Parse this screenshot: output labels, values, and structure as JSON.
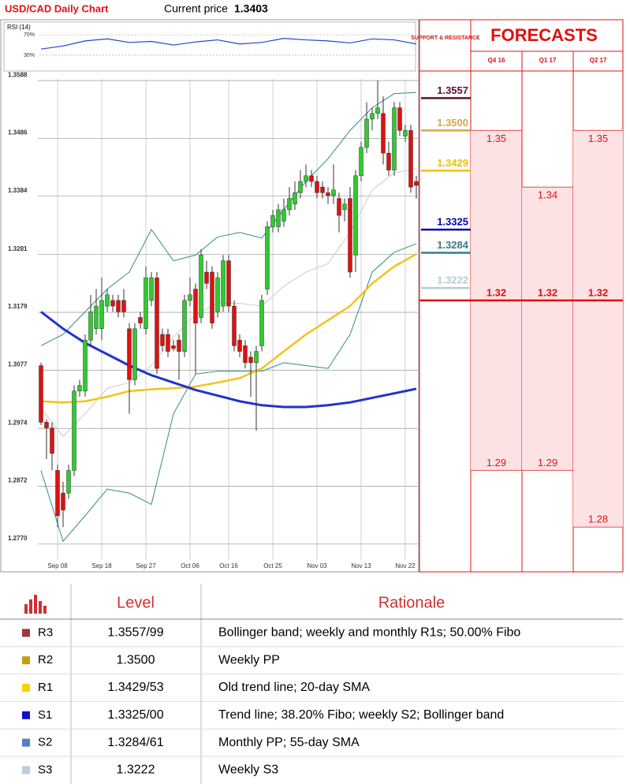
{
  "chart_data": {
    "type": "candlestick",
    "title": "USD/CAD Daily Chart",
    "current_price_label": "Current price",
    "current_price": 1.3403,
    "categories": [
      null,
      null,
      null,
      "Sep 08",
      null,
      null,
      null,
      null,
      null,
      null,
      null,
      "Sep 18",
      null,
      null,
      null,
      null,
      null,
      null,
      null,
      "Sep 27",
      null,
      null,
      null,
      null,
      null,
      null,
      null,
      "Oct 06",
      null,
      null,
      null,
      null,
      null,
      null,
      "Oct 16",
      null,
      null,
      null,
      null,
      null,
      null,
      null,
      "Oct 25",
      null,
      null,
      null,
      null,
      null,
      null,
      null,
      "Nov 03",
      null,
      null,
      null,
      null,
      null,
      null,
      null,
      "Nov 13",
      null,
      null,
      null,
      null,
      null,
      null,
      null,
      "Nov 22",
      null,
      null
    ],
    "ohlc": [
      [
        1.3085,
        1.309,
        1.298,
        1.2985
      ],
      [
        1.2985,
        1.299,
        1.292,
        1.2975
      ],
      [
        1.2975,
        1.2985,
        1.29,
        1.293
      ],
      [
        1.29,
        1.291,
        1.28,
        1.282
      ],
      [
        1.286,
        1.288,
        1.28,
        1.283
      ],
      [
        1.286,
        1.291,
        1.285,
        1.29
      ],
      [
        1.29,
        1.305,
        1.289,
        1.304
      ],
      [
        1.304,
        1.306,
        1.303,
        1.305
      ],
      [
        1.304,
        1.314,
        1.303,
        1.313
      ],
      [
        1.313,
        1.321,
        1.312,
        1.318
      ],
      [
        1.315,
        1.322,
        1.314,
        1.319
      ],
      [
        1.315,
        1.324,
        1.313,
        1.32
      ],
      [
        1.319,
        1.322,
        1.318,
        1.321
      ],
      [
        1.32,
        1.321,
        1.318,
        1.319
      ],
      [
        1.32,
        1.321,
        1.317,
        1.318
      ],
      [
        1.32,
        1.322,
        1.317,
        1.318
      ],
      [
        1.315,
        1.316,
        1.3,
        1.306
      ],
      [
        1.306,
        1.316,
        1.305,
        1.315
      ],
      [
        1.317,
        1.318,
        1.315,
        1.316
      ],
      [
        1.315,
        1.326,
        1.314,
        1.324
      ],
      [
        1.32,
        1.325,
        1.319,
        1.324
      ],
      [
        1.324,
        1.325,
        1.307,
        1.308
      ],
      [
        1.314,
        1.315,
        1.311,
        1.312
      ],
      [
        1.314,
        1.315,
        1.31,
        1.311
      ],
      [
        1.312,
        1.313,
        1.311,
        1.3115
      ],
      [
        1.313,
        1.314,
        1.306,
        1.311
      ],
      [
        1.311,
        1.321,
        1.31,
        1.32
      ],
      [
        1.32,
        1.324,
        1.319,
        1.321
      ],
      [
        1.322,
        1.323,
        1.307,
        1.316
      ],
      [
        1.317,
        1.329,
        1.316,
        1.328
      ],
      [
        1.325,
        1.327,
        1.322,
        1.323
      ],
      [
        1.325,
        1.326,
        1.315,
        1.316
      ],
      [
        1.318,
        1.325,
        1.317,
        1.324
      ],
      [
        1.319,
        1.328,
        1.318,
        1.327
      ],
      [
        1.327,
        1.328,
        1.318,
        1.319
      ],
      [
        1.319,
        1.32,
        1.311,
        1.312
      ],
      [
        1.313,
        1.314,
        1.31,
        1.311
      ],
      [
        1.312,
        1.313,
        1.308,
        1.309
      ],
      [
        1.31,
        1.311,
        1.303,
        1.309
      ],
      [
        1.309,
        1.312,
        1.297,
        1.311
      ],
      [
        1.312,
        1.321,
        1.311,
        1.32
      ],
      [
        1.322,
        1.334,
        1.321,
        1.333
      ],
      [
        1.333,
        1.336,
        1.332,
        1.335
      ],
      [
        1.333,
        1.337,
        1.332,
        1.336
      ],
      [
        1.334,
        1.338,
        1.333,
        1.336
      ],
      [
        1.336,
        1.34,
        1.335,
        1.338
      ],
      [
        1.337,
        1.341,
        1.336,
        1.339
      ],
      [
        1.339,
        1.343,
        1.338,
        1.341
      ],
      [
        1.341,
        1.344,
        1.34,
        1.342
      ],
      [
        1.342,
        1.343,
        1.34,
        1.341
      ],
      [
        1.341,
        1.342,
        1.338,
        1.339
      ],
      [
        1.34,
        1.341,
        1.338,
        1.339
      ],
      [
        1.339,
        1.34,
        1.337,
        1.3385
      ],
      [
        1.3385,
        1.344,
        1.337,
        1.3395
      ],
      [
        1.338,
        1.339,
        1.332,
        1.335
      ],
      [
        1.336,
        1.338,
        1.334,
        1.337
      ],
      [
        1.338,
        1.34,
        1.324,
        1.325
      ],
      [
        1.328,
        1.343,
        1.325,
        1.342
      ],
      [
        1.342,
        1.348,
        1.341,
        1.347
      ],
      [
        1.347,
        1.355,
        1.346,
        1.352
      ],
      [
        1.352,
        1.354,
        1.35,
        1.353
      ],
      [
        1.353,
        1.3588,
        1.352,
        1.354
      ],
      [
        1.353,
        1.356,
        1.344,
        1.346
      ],
      [
        1.346,
        1.348,
        1.342,
        1.343
      ],
      [
        1.343,
        1.355,
        1.342,
        1.354
      ],
      [
        1.354,
        1.355,
        1.349,
        1.35
      ],
      [
        1.349,
        1.351,
        1.348,
        1.35
      ],
      [
        1.35,
        1.351,
        1.339,
        1.34
      ],
      [
        1.341,
        1.342,
        1.338,
        1.3403
      ]
    ],
    "up_color": "#2ecc2e",
    "down_color": "#e01010",
    "ylim": [
      1.2721,
      1.3591
    ],
    "yticks": [
      1.3588,
      1.3486,
      1.3384,
      1.3281,
      1.3179,
      1.3077,
      1.2974,
      1.2872,
      {
        "value": 1.277,
        "label": "1.2770"
      }
    ],
    "grid": true,
    "overlays": [
      {
        "color": "#cccccc",
        "width": 1,
        "x": [
          0,
          4,
          8,
          12,
          16,
          20,
          24,
          28,
          32,
          36,
          40,
          44,
          48,
          52,
          56,
          60,
          64,
          68
        ],
        "values": [
          1.301,
          1.296,
          1.3,
          1.3045,
          1.3055,
          1.3085,
          1.3135,
          1.3175,
          1.3195,
          1.3195,
          1.319,
          1.3225,
          1.325,
          1.3265,
          1.332,
          1.3395,
          1.3425,
          1.3433
        ]
      },
      {
        "color": "#2e8b8b",
        "width": 1,
        "x": [
          0,
          4,
          8,
          12,
          16,
          20,
          24,
          28,
          32,
          36,
          40,
          44,
          48,
          52,
          56,
          60,
          64,
          68
        ],
        "values": [
          1.312,
          1.314,
          1.318,
          1.322,
          1.325,
          1.3325,
          1.327,
          1.328,
          1.3312,
          1.332,
          1.331,
          1.336,
          1.341,
          1.345,
          1.35,
          1.354,
          1.3565,
          1.3567
        ]
      },
      {
        "color": "#2e8b8b",
        "width": 1,
        "x": [
          0,
          4,
          8,
          12,
          16,
          20,
          24,
          28,
          32,
          36,
          40,
          44,
          48,
          52,
          56,
          60,
          64,
          68
        ],
        "values": [
          1.29,
          1.2775,
          1.282,
          1.2867,
          1.286,
          1.284,
          1.3,
          1.307,
          1.3075,
          1.3075,
          1.3075,
          1.309,
          1.3085,
          1.308,
          1.314,
          1.325,
          1.3285,
          1.33
        ]
      },
      {
        "color": "#f2c31a",
        "width": 2.5,
        "x": [
          0,
          4,
          8,
          12,
          16,
          20,
          24,
          28,
          32,
          36,
          40,
          44,
          48,
          52,
          56,
          60,
          64,
          68
        ],
        "values": [
          1.3022,
          1.302,
          1.3022,
          1.303,
          1.304,
          1.3043,
          1.3045,
          1.3048,
          1.3055,
          1.3063,
          1.308,
          1.311,
          1.314,
          1.3165,
          1.319,
          1.323,
          1.326,
          1.3282
        ]
      },
      {
        "color": "#2233cc",
        "width": 3,
        "x": [
          0,
          4,
          8,
          12,
          16,
          20,
          24,
          28,
          32,
          36,
          40,
          44,
          48,
          52,
          56,
          60,
          64,
          68
        ],
        "values": [
          1.318,
          1.315,
          1.3125,
          1.3105,
          1.3085,
          1.3068,
          1.3055,
          1.3042,
          1.3032,
          1.3022,
          1.3015,
          1.3012,
          1.3012,
          1.3015,
          1.302,
          1.3028,
          1.3036,
          1.3044
        ]
      }
    ],
    "rsi": {
      "label": "RSI (14)",
      "color": "#2244cc",
      "x": [
        0,
        4,
        8,
        12,
        16,
        20,
        24,
        28,
        32,
        36,
        40,
        44,
        48,
        52,
        56,
        60,
        64,
        68
      ],
      "values": [
        42,
        48,
        58,
        62,
        55,
        57,
        50,
        56,
        60,
        52,
        55,
        63,
        60,
        58,
        54,
        62,
        60,
        52
      ],
      "ylim": [
        2,
        95
      ],
      "yticks": [
        {
          "value": 70,
          "label": "70%"
        },
        {
          "value": 30,
          "label": "30%"
        }
      ]
    },
    "levels": {
      "title": "SUPPORT & RESISTANCE",
      "items": [
        {
          "value": 1.3557,
          "color": "#5a1030"
        },
        {
          "value": 1.35,
          "label": "1.3500",
          "color": "#d4a94a"
        },
        {
          "value": 1.3429,
          "color": "#f0c000"
        },
        {
          "value": 1.3325,
          "color": "#0000b0"
        },
        {
          "value": 1.3284,
          "color": "#3a7a8a"
        },
        {
          "value": 1.3222,
          "color": "#b0d0d0"
        }
      ]
    }
  },
  "forecasts": {
    "title": "FORECASTS",
    "columns": [
      {
        "label": "Q4 16",
        "high": 1.35,
        "median": 1.32,
        "low": 1.29
      },
      {
        "label": "Q1 17",
        "high": 1.34,
        "median": 1.32,
        "low": 1.29
      },
      {
        "label": "Q2 17",
        "high": 1.35,
        "median": 1.32,
        "low": 1.28
      }
    ]
  },
  "table": {
    "header": [
      "Level",
      "Rationale"
    ],
    "rows": [
      {
        "label": "R3",
        "level": "1.3557/99",
        "rationale": "Bollinger band; weekly and monthly R1s; 50.00% Fibo",
        "color": "#9b3a3a"
      },
      {
        "label": "R2",
        "level": "1.3500",
        "rationale": "Weekly PP",
        "color": "#c89a10"
      },
      {
        "label": "R1",
        "level": "1.3429/53",
        "rationale": "Old trend line; 20-day SMA",
        "color": "#ffd000"
      },
      {
        "label": "S1",
        "level": "1.3325/00",
        "rationale": "Trend line; 38.20% Fibo; weekly S2; Bollinger band",
        "color": "#1010cc"
      },
      {
        "label": "S2",
        "level": "1.3284/61",
        "rationale": "Monthly PP; 55-day SMA",
        "color": "#4f81bd"
      },
      {
        "label": "S3",
        "level": "1.3222",
        "rationale": "Weekly S3",
        "color": "#b8cce4"
      }
    ]
  }
}
